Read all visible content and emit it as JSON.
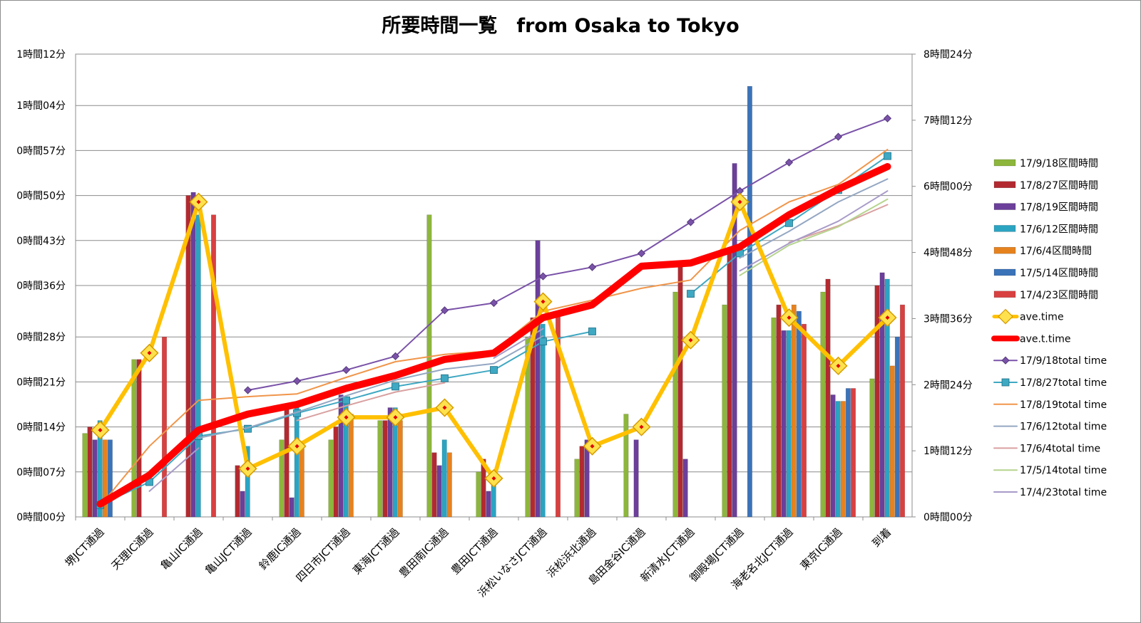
{
  "chart_data": {
    "type": "bar",
    "title": "所要時間一覧　from Osaka to Tokyo",
    "categories": [
      "堺JCT通過",
      "天理IC通過",
      "亀山IC通過",
      "亀山JCT通過",
      "鈴鹿IC通過",
      "四日市JCT通過",
      "東海JCT通過",
      "豊田南IC通過",
      "豊田JCT通過",
      "浜松いなさJCT通過",
      "浜松浜北通過",
      "島田金谷IC通過",
      "新清水JCT通過",
      "御殿場JCT通過",
      "海老名北JCT通過",
      "東京IC通過",
      "到着"
    ],
    "y_left": {
      "unit": "minutes",
      "ylim": [
        0,
        72
      ],
      "ticks": [
        0,
        7,
        14,
        21,
        28,
        36,
        43,
        50,
        57,
        64,
        72
      ],
      "tick_labels": [
        "0時間00分",
        "0時間07分",
        "0時間14分",
        "0時間21分",
        "0時間28分",
        "0時間36分",
        "0時間43分",
        "0時間50分",
        "0時間57分",
        "1時間04分",
        "1時間12分"
      ]
    },
    "y_right": {
      "unit": "minutes",
      "ylim": [
        0,
        504
      ],
      "ticks": [
        0,
        72,
        144,
        216,
        288,
        360,
        432,
        504
      ],
      "tick_labels": [
        "0時間00分",
        "1時間12分",
        "2時間24分",
        "3時間36分",
        "4時間48分",
        "6時間00分",
        "7時間12分",
        "8時間24分"
      ]
    },
    "bar_series": [
      {
        "name": "17/9/18区間時間",
        "color": "#8db63c",
        "values": [
          13,
          24.5,
          null,
          null,
          12,
          12,
          15,
          47,
          7,
          28,
          9,
          16,
          35,
          33,
          31,
          35,
          21.5
        ]
      },
      {
        "name": "17/8/27区間時間",
        "color": "#b22a30",
        "values": [
          14,
          24.5,
          50,
          8,
          17,
          14,
          15,
          10,
          9,
          31,
          11,
          null,
          39,
          41,
          33,
          37,
          36
        ]
      },
      {
        "name": "17/8/19区間時間",
        "color": "#6b3f9a",
        "values": [
          12,
          null,
          50.5,
          4,
          3,
          19,
          17,
          8,
          4,
          43,
          12,
          12,
          9,
          55,
          29,
          19,
          38
        ]
      },
      {
        "name": "17/6/12区間時間",
        "color": "#2ba4c2",
        "values": [
          15,
          null,
          47,
          11,
          17,
          18,
          17,
          12,
          6,
          30,
          null,
          null,
          null,
          null,
          29,
          18,
          37
        ]
      },
      {
        "name": "17/6/4区間時間",
        "color": "#e6821e",
        "values": [
          12,
          null,
          null,
          null,
          11,
          16,
          15,
          10,
          null,
          null,
          null,
          null,
          null,
          null,
          33,
          18,
          23.5
        ]
      },
      {
        "name": "17/5/14区間時間",
        "color": "#3b73b9",
        "values": [
          12,
          null,
          null,
          null,
          null,
          null,
          null,
          null,
          null,
          null,
          null,
          null,
          null,
          67,
          32,
          20,
          28
        ]
      },
      {
        "name": "17/4/23区間時間",
        "color": "#d94040",
        "values": [
          null,
          28,
          47,
          null,
          null,
          null,
          null,
          null,
          null,
          32,
          null,
          null,
          null,
          null,
          30,
          20,
          33
        ]
      }
    ],
    "line_series": [
      {
        "name": "ave.time",
        "axis": "left",
        "color": "#ffc000",
        "marker": "diamond",
        "values": [
          13.5,
          25.5,
          49,
          7.5,
          11,
          15.5,
          15.5,
          17,
          6,
          33.5,
          11,
          14,
          27.5,
          49,
          31,
          23.5,
          31
        ]
      },
      {
        "name": "ave.t.time",
        "axis": "left",
        "color": "#ff0000",
        "marker": "none",
        "values": [
          2,
          6.5,
          13.5,
          16,
          17.5,
          20,
          22,
          24.5,
          25.5,
          31,
          33,
          39,
          39.5,
          42,
          47,
          51,
          54.5
        ]
      },
      {
        "name": "17/9/18total time",
        "axis": "right",
        "color": "#7a52a8",
        "marker": "diamond",
        "values": [
          null,
          null,
          null,
          138,
          148,
          160,
          175,
          225,
          233,
          262,
          272,
          287,
          321,
          355,
          386,
          414,
          434
        ]
      },
      {
        "name": "17/8/27total time",
        "axis": "right",
        "color": "#3fa8c2",
        "marker": "square",
        "values": [
          13,
          38,
          88,
          96,
          113,
          127,
          142,
          151,
          160,
          191,
          202,
          null,
          243,
          287,
          320,
          356,
          393
        ]
      },
      {
        "name": "17/8/19total time",
        "axis": "right",
        "color": "#f0954a",
        "marker": "none",
        "values": [
          12,
          77,
          127,
          131,
          134,
          152,
          169,
          177,
          181,
          224,
          236,
          249,
          258,
          312,
          343,
          362,
          400
        ]
      },
      {
        "name": "17/6/12total time",
        "axis": "right",
        "color": "#94a7c2",
        "marker": "none",
        "values": [
          15,
          null,
          86,
          97,
          114,
          132,
          149,
          161,
          167,
          197,
          null,
          null,
          null,
          282,
          311,
          343,
          368
        ]
      },
      {
        "name": "17/6/4total time",
        "axis": "right",
        "color": "#d9a0a0",
        "marker": "none",
        "values": [
          12,
          null,
          null,
          null,
          105,
          121,
          136,
          146,
          null,
          null,
          null,
          null,
          null,
          null,
          299,
          317,
          340
        ]
      },
      {
        "name": "17/5/14total time",
        "axis": "right",
        "color": "#b6d48e",
        "marker": "none",
        "values": [
          null,
          null,
          null,
          null,
          null,
          null,
          null,
          null,
          null,
          null,
          null,
          null,
          null,
          263,
          296,
          316,
          346
        ]
      },
      {
        "name": "17/4/23total time",
        "axis": "right",
        "color": "#a89bc8",
        "marker": "none",
        "values": [
          null,
          28,
          75,
          null,
          null,
          null,
          null,
          null,
          173,
          205,
          null,
          null,
          null,
          268,
          298,
          322,
          355
        ]
      }
    ],
    "legend_position": "right",
    "grid": true
  }
}
